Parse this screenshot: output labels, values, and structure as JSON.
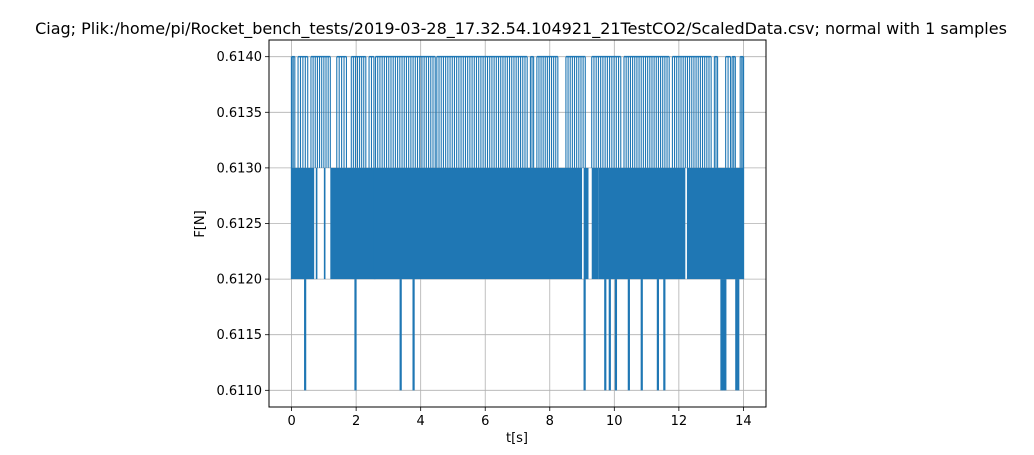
{
  "chart_data": {
    "type": "line",
    "title": "Ciag; Plik:/home/pi/Rocket_bench_tests/2019-03-28_17.32.54.104921_21TestCO2/ScaledData.csv; normal with 1 samples",
    "xlabel": "t[s]",
    "ylabel": "F[N]",
    "xlim": [
      -0.7,
      14.7
    ],
    "ylim": [
      0.61085,
      0.61415
    ],
    "grid": true,
    "series_color": "#1f77b4",
    "xticks": [
      0,
      2,
      4,
      6,
      8,
      10,
      12,
      14
    ],
    "xtick_labels": [
      "0",
      "2",
      "4",
      "6",
      "8",
      "10",
      "12",
      "14"
    ],
    "yticks": [
      0.611,
      0.6115,
      0.612,
      0.6125,
      0.613,
      0.6135,
      0.614
    ],
    "ytick_labels": [
      "0.6110",
      "0.6115",
      "0.6120",
      "0.6125",
      "0.6130",
      "0.6135",
      "0.6140"
    ],
    "levels": [
      0.611,
      0.612,
      0.613,
      0.614
    ],
    "band_low_high": [
      [
        0.612,
        0.613
      ]
    ],
    "series": [
      {
        "name": "F",
        "x_range": [
          0,
          14
        ],
        "typical_range": [
          0.612,
          0.614
        ],
        "spikes_to_0.611_at_t": [
          0.42,
          1.98,
          3.38,
          3.78,
          9.08,
          9.72,
          9.86,
          10.05,
          10.45,
          10.85,
          11.35,
          11.55,
          13.32,
          13.38,
          13.44,
          13.78,
          13.84
        ],
        "spikes_to_0.614_intervals": [
          [
            0.0,
            0.1
          ],
          [
            0.2,
            0.5
          ],
          [
            0.6,
            1.2
          ],
          [
            1.4,
            1.7
          ],
          [
            1.85,
            2.3
          ],
          [
            2.4,
            2.55
          ],
          [
            2.6,
            4.45
          ],
          [
            4.5,
            7.3
          ],
          [
            7.4,
            7.5
          ],
          [
            7.6,
            8.25
          ],
          [
            8.5,
            9.1
          ],
          [
            9.3,
            10.2
          ],
          [
            10.3,
            11.7
          ],
          [
            11.8,
            13.0
          ],
          [
            13.1,
            13.2
          ],
          [
            13.45,
            13.6
          ],
          [
            13.65,
            13.75
          ],
          [
            13.9,
            14.0
          ]
        ],
        "drop_to_0.612_intervals": [
          [
            0.0,
            0.7
          ],
          [
            0.75,
            0.8
          ],
          [
            1.0,
            1.05
          ],
          [
            1.2,
            1.5
          ],
          [
            1.5,
            2.6
          ],
          [
            2.55,
            9.0
          ],
          [
            9.05,
            9.2
          ],
          [
            9.3,
            9.5
          ],
          [
            9.5,
            12.2
          ],
          [
            12.25,
            14.0
          ]
        ]
      }
    ]
  }
}
